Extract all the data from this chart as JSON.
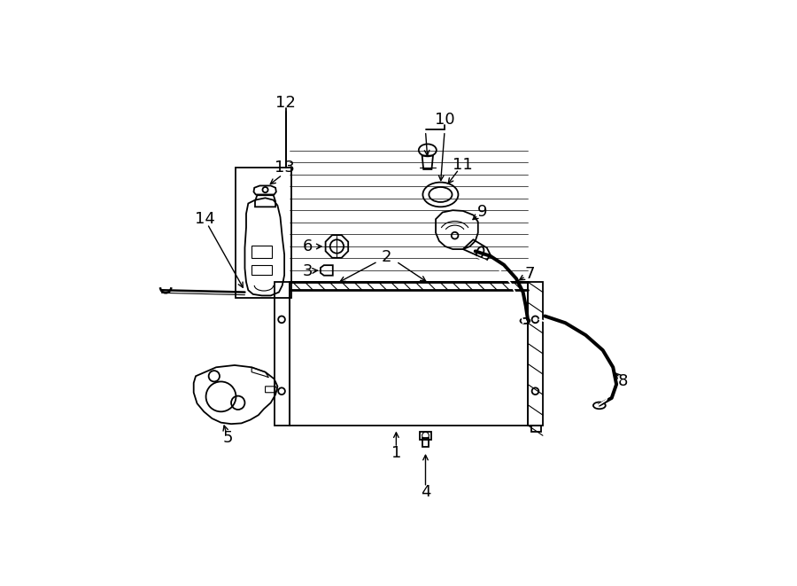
{
  "bg_color": "#ffffff",
  "line_color": "#000000",
  "fig_width": 9.0,
  "fig_height": 6.61,
  "dpi": 100,
  "label_fontsize": 13
}
